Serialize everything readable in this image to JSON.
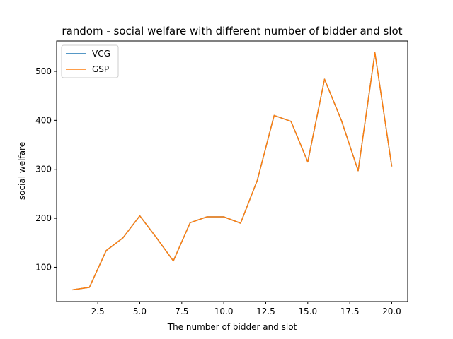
{
  "chart_data": {
    "type": "line",
    "title": "random - social welfare with different number of bidder and slot",
    "xlabel": "The number of bidder and slot",
    "ylabel": "social welfare",
    "xlim": [
      0.05,
      20.95
    ],
    "ylim": [
      30,
      562
    ],
    "xticks": [
      2.5,
      5.0,
      7.5,
      10.0,
      12.5,
      15.0,
      17.5,
      20.0
    ],
    "xtick_labels": [
      "2.5",
      "5.0",
      "7.5",
      "10.0",
      "12.5",
      "15.0",
      "17.5",
      "20.0"
    ],
    "yticks": [
      100,
      200,
      300,
      400,
      500
    ],
    "ytick_labels": [
      "100",
      "200",
      "300",
      "400",
      "500"
    ],
    "grid": false,
    "legend_position": "upper-left",
    "x": [
      1,
      2,
      3,
      4,
      5,
      6,
      7,
      8,
      9,
      10,
      11,
      12,
      13,
      14,
      15,
      16,
      17,
      18,
      19,
      20
    ],
    "series": [
      {
        "name": "VCG",
        "color": "#1f77b4",
        "values": [
          54,
          59,
          134,
          160,
          205,
          160,
          113,
          191,
          203,
          203,
          190,
          278,
          410,
          398,
          315,
          484,
          400,
          297,
          538,
          306
        ]
      },
      {
        "name": "GSP",
        "color": "#ff7f0e",
        "values": [
          54,
          59,
          134,
          160,
          205,
          160,
          113,
          191,
          203,
          203,
          190,
          278,
          410,
          398,
          315,
          484,
          400,
          297,
          538,
          306
        ]
      }
    ]
  }
}
